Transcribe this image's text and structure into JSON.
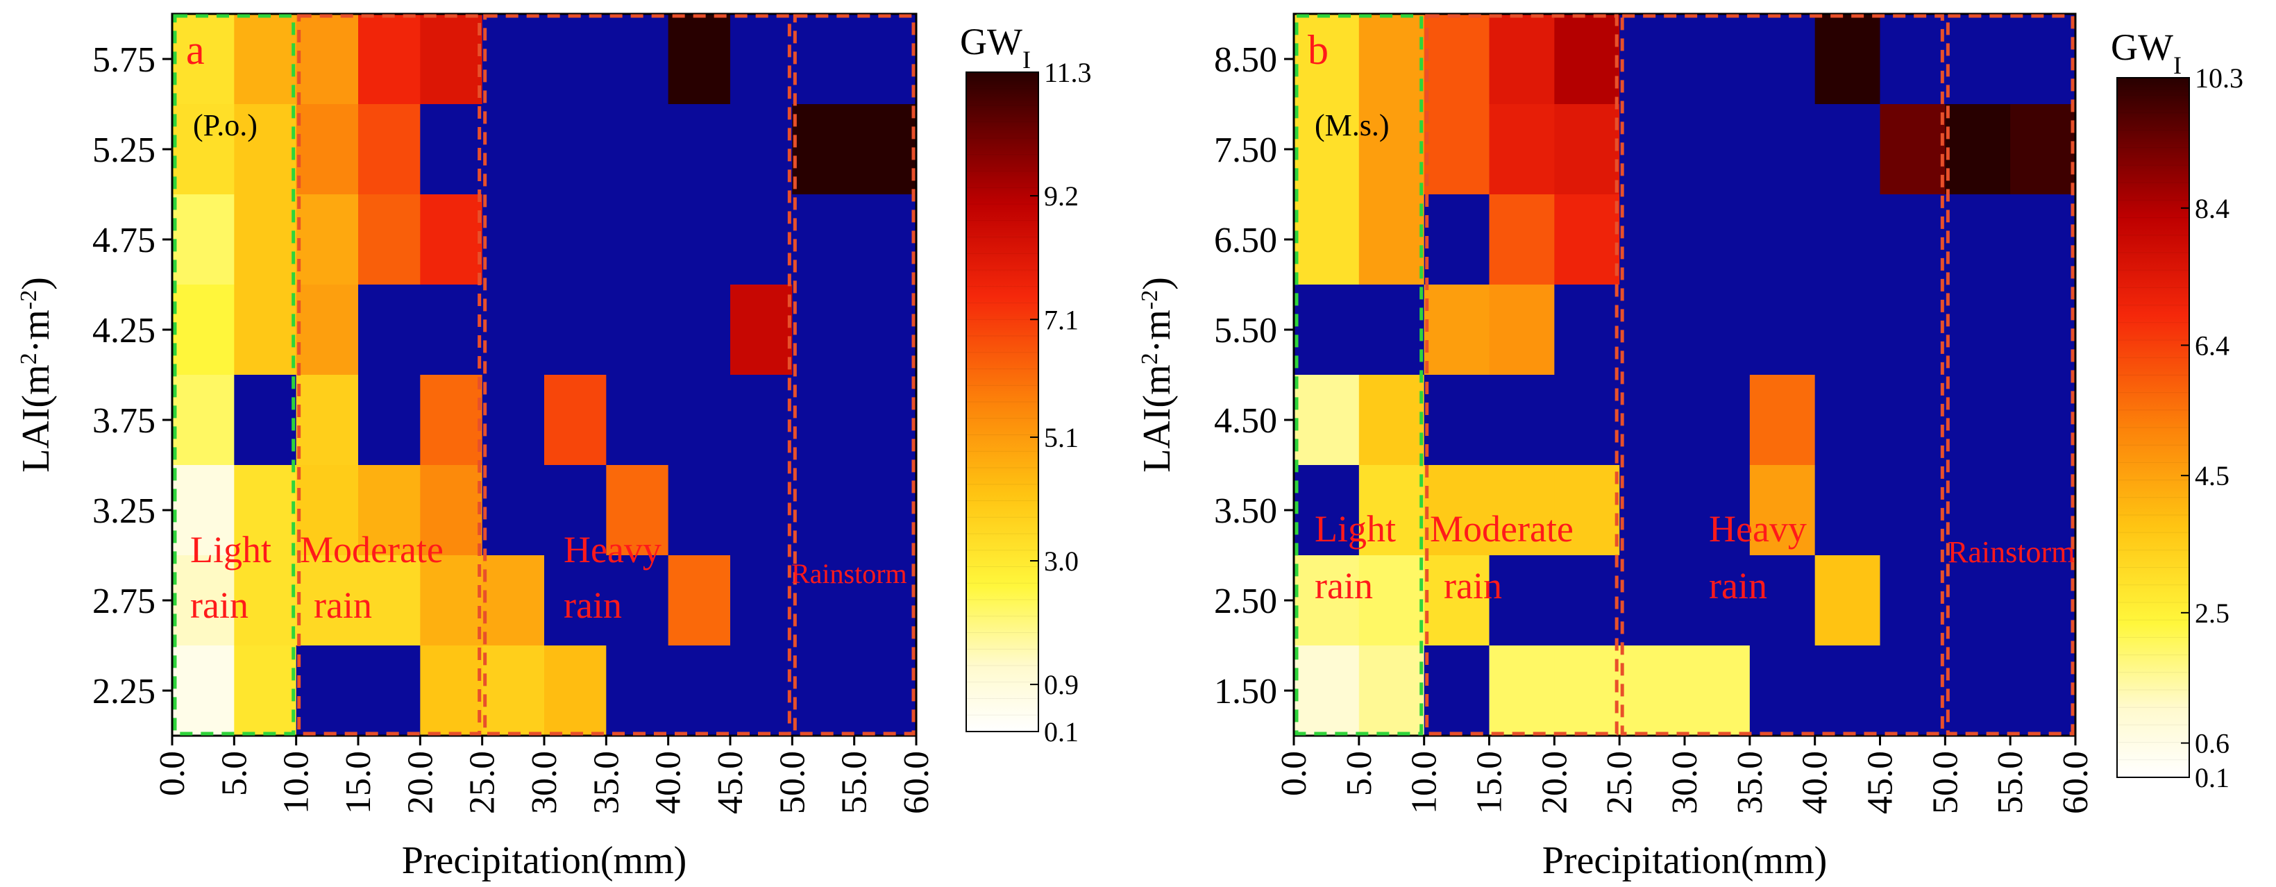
{
  "chart_data": [
    {
      "type": "heatmap",
      "panel_label": "a",
      "species": "(P.o.)",
      "xlabel": "Precipitation(mm)",
      "ylabel_main": "LAI(m",
      "ylabel_sup1": "2",
      "ylabel_mid": "·m",
      "ylabel_sup2": "-2",
      "ylabel_end": ")",
      "x_tick_labels": [
        "0.0",
        "5.0",
        "10.0",
        "15.0",
        "20.0",
        "25.0",
        "30.0",
        "35.0",
        "40.0",
        "45.0",
        "50.0",
        "55.0",
        "60.0"
      ],
      "y_tick_labels": [
        "5.75",
        "5.25",
        "4.75",
        "4.25",
        "3.75",
        "3.25",
        "2.75",
        "2.25"
      ],
      "rows_top_to_bottom": [
        [
          3.2,
          4.6,
          5.2,
          7.6,
          8.2,
          0,
          0,
          0,
          11.3,
          0,
          0,
          0
        ],
        [
          3.3,
          4.0,
          5.6,
          6.8,
          0,
          0,
          0,
          0,
          0,
          0,
          11.3,
          11.3
        ],
        [
          2.2,
          4.0,
          4.8,
          6.4,
          7.6,
          0,
          0,
          0,
          0,
          0,
          0,
          0
        ],
        [
          2.6,
          4.0,
          5.0,
          0,
          0,
          0,
          0,
          0,
          0,
          8.8,
          0,
          0
        ],
        [
          2.2,
          0,
          3.8,
          0,
          6.2,
          0,
          6.9,
          0,
          0,
          0,
          0,
          0
        ],
        [
          0.8,
          3.2,
          3.9,
          4.6,
          5.5,
          0,
          0,
          6.2,
          0,
          0,
          0,
          0
        ],
        [
          1.3,
          3.2,
          3.5,
          3.5,
          4.6,
          4.8,
          0,
          0,
          6.2,
          0,
          0,
          0
        ],
        [
          0.6,
          3.1,
          0,
          0,
          4.1,
          3.8,
          4.3,
          0,
          0,
          0,
          0,
          0
        ]
      ],
      "zero_color": "#0a0a9a",
      "colorbar": {
        "title": "GW",
        "title_sub": "I",
        "ticks": [
          "11.3",
          "9.2",
          "7.1",
          "5.1",
          "3.0",
          "0.9",
          "0.1"
        ],
        "min": 0.1,
        "max": 11.3
      },
      "regions": [
        {
          "name": "Light rain",
          "lines": [
            "Light",
            "rain"
          ],
          "color": "#2fd43b",
          "x_range_mm": [
            0,
            10
          ]
        },
        {
          "name": "Moderate rain",
          "lines": [
            "Moderate",
            "rain"
          ],
          "color": "#e8502a",
          "x_range_mm": [
            10,
            25
          ]
        },
        {
          "name": "Heavy rain",
          "lines": [
            "Heavy",
            "rain"
          ],
          "color": "#e8502a",
          "x_range_mm": [
            25,
            50
          ]
        },
        {
          "name": "Rainstorm",
          "lines": [
            "Rainstorm"
          ],
          "color": "#e8502a",
          "x_range_mm": [
            50,
            60
          ]
        }
      ]
    },
    {
      "type": "heatmap",
      "panel_label": "b",
      "species": "(M.s.)",
      "xlabel": "Precipitation(mm)",
      "ylabel_main": "LAI(m",
      "ylabel_sup1": "2",
      "ylabel_mid": "·m",
      "ylabel_sup2": "-2",
      "ylabel_end": ")",
      "x_tick_labels": [
        "0.0",
        "5.0",
        "10.0",
        "15.0",
        "20.0",
        "25.0",
        "30.0",
        "35.0",
        "40.0",
        "45.0",
        "50.0",
        "55.0",
        "60.0"
      ],
      "y_tick_labels": [
        "8.50",
        "7.50",
        "6.50",
        "5.50",
        "4.50",
        "3.50",
        "2.50",
        "1.50"
      ],
      "rows_top_to_bottom": [
        [
          3.0,
          4.6,
          6.0,
          7.4,
          8.4,
          0,
          0,
          0,
          10.3,
          0,
          0,
          0
        ],
        [
          3.0,
          4.6,
          6.0,
          7.2,
          7.4,
          0,
          0,
          0,
          0,
          9.4,
          10.3,
          10.0
        ],
        [
          3.0,
          4.6,
          0,
          6.0,
          7.0,
          0,
          0,
          0,
          0,
          0,
          0,
          0
        ],
        [
          0,
          0,
          4.6,
          4.8,
          0,
          0,
          0,
          0,
          0,
          0,
          0,
          0
        ],
        [
          1.6,
          3.6,
          0,
          0,
          0,
          0,
          0,
          5.6,
          0,
          0,
          0,
          0
        ],
        [
          0,
          3.0,
          3.6,
          3.6,
          3.6,
          0,
          0,
          4.6,
          0,
          0,
          0,
          0
        ],
        [
          1.8,
          2.0,
          3.0,
          0,
          0,
          0,
          0,
          0,
          3.8,
          0,
          0,
          0
        ],
        [
          1.0,
          1.6,
          0,
          2.0,
          2.0,
          2.0,
          2.0,
          0,
          0,
          0,
          0,
          0
        ]
      ],
      "zero_color": "#0a0a9a",
      "colorbar": {
        "title": "GW",
        "title_sub": "I",
        "ticks": [
          "10.3",
          "8.4",
          "6.4",
          "4.5",
          "2.5",
          "0.6",
          "0.1"
        ],
        "min": 0.1,
        "max": 10.3
      },
      "regions": [
        {
          "name": "Light rain",
          "lines": [
            "Light",
            "rain"
          ],
          "color": "#2fd43b",
          "x_range_mm": [
            0,
            10
          ]
        },
        {
          "name": "Moderate rain",
          "lines": [
            "Moderate",
            "rain"
          ],
          "color": "#e8502a",
          "x_range_mm": [
            10,
            25
          ]
        },
        {
          "name": "Heavy rain",
          "lines": [
            "Heavy",
            "rain"
          ],
          "color": "#e8502a",
          "x_range_mm": [
            25,
            50
          ]
        },
        {
          "name": "Rainstorm",
          "lines": [
            "Rainstorm"
          ],
          "color": "#e8502a",
          "x_range_mm": [
            50,
            60
          ]
        }
      ]
    }
  ]
}
